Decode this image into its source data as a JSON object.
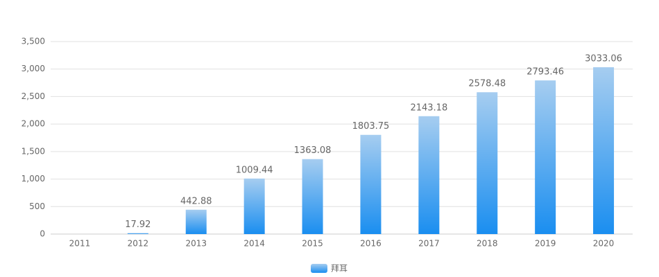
{
  "chart_data": {
    "type": "bar",
    "categories": [
      "2011",
      "2012",
      "2013",
      "2014",
      "2015",
      "2016",
      "2017",
      "2018",
      "2019",
      "2020"
    ],
    "series": [
      {
        "name": "拜耳",
        "color": [
          "#a6cdf0",
          "#1a8ef0"
        ],
        "values": [
          null,
          17.92,
          442.88,
          1009.44,
          1363.08,
          1803.75,
          2143.18,
          2578.48,
          2793.46,
          3033.06
        ]
      }
    ],
    "ylim": [
      0,
      3500
    ],
    "yticks": [
      0,
      500,
      {
        "value": 1000,
        "label": "1,000"
      },
      {
        "value": 1500,
        "label": "1,500"
      },
      {
        "value": 2000,
        "label": "2,000"
      },
      {
        "value": 2500,
        "label": "2,500"
      },
      {
        "value": 3000,
        "label": "3,000"
      },
      {
        "value": 3500,
        "label": "3,500"
      }
    ],
    "grid": true,
    "legend": "bottom"
  }
}
